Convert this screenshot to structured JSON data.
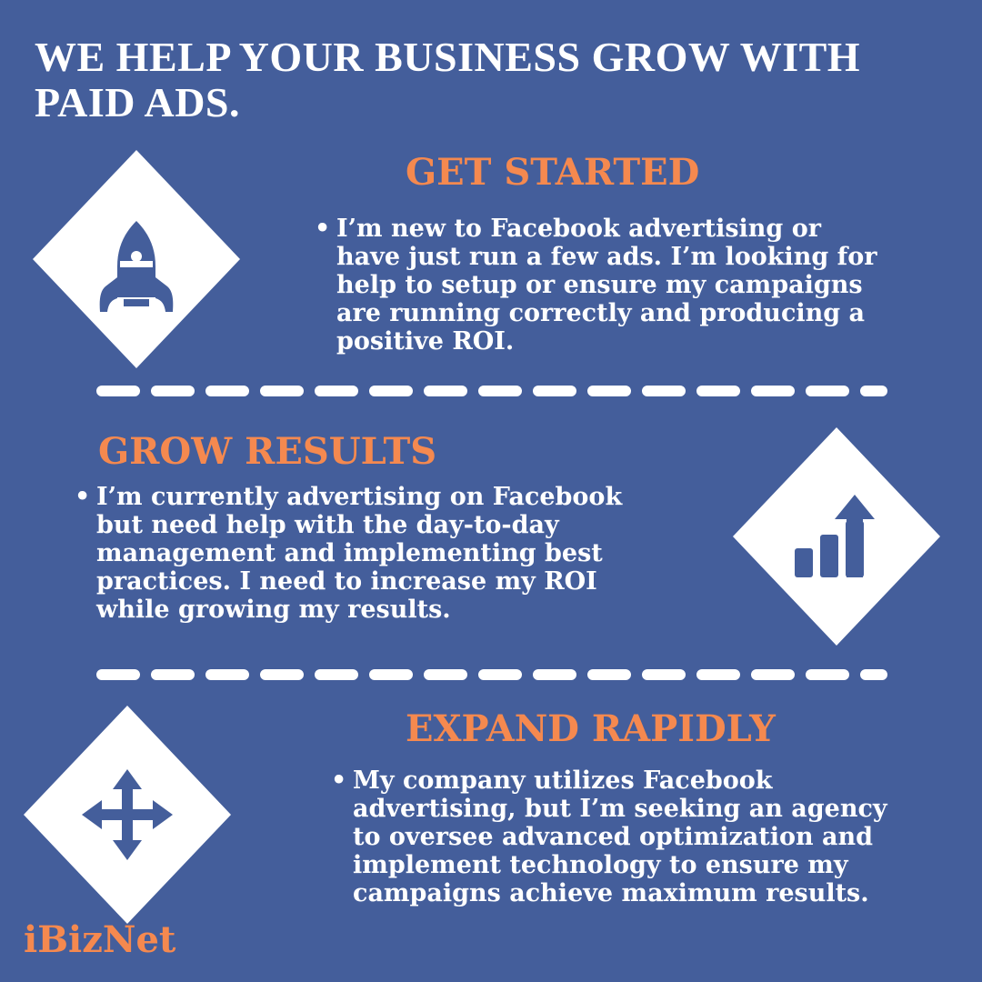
{
  "title": "WE HELP YOUR BUSINESS GROW WITH PAID ADS.",
  "colors": {
    "background": "#445e9b",
    "accent": "#f5894f",
    "text": "#ffffff",
    "icon": "#445e9b"
  },
  "sections": [
    {
      "heading": "GET STARTED",
      "icon": "rocket-icon",
      "bullet": "•",
      "text": "I’m new to Facebook advertising or have just run a few ads. I’m looking for help to setup or ensure my campaigns are running correctly and producing a positive ROI."
    },
    {
      "heading": "GROW RESULTS",
      "icon": "growth-chart-icon",
      "bullet": "•",
      "text": "I’m currently advertising on Facebook but need help with the day-to-day management and implementing best practices. I need to increase my ROI while growing my results."
    },
    {
      "heading": "EXPAND RAPIDLY",
      "icon": "expand-arrows-icon",
      "bullet": "•",
      "text": "My company utilizes Facebook advertising, but I’m seeking an agency to oversee advanced optimization and implement technology to ensure my campaigns achieve maximum results."
    }
  ],
  "brand": "iBizNet"
}
